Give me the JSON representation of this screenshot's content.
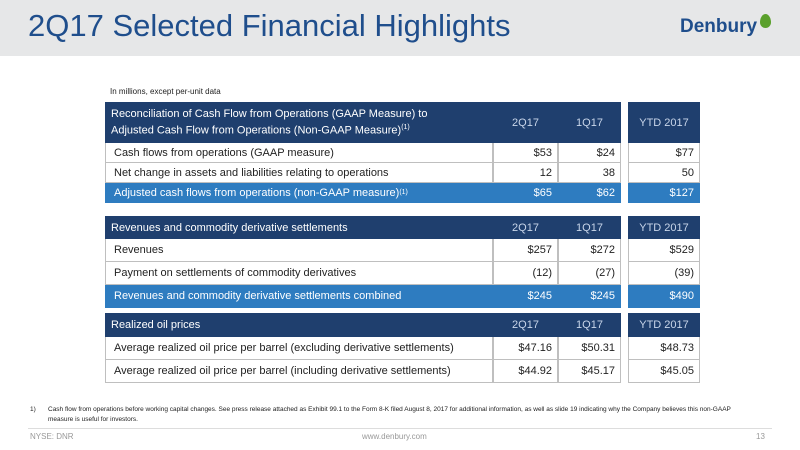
{
  "header": {
    "title": "2Q17 Selected Financial Highlights",
    "logo": "Denbury"
  },
  "note": "In millions, except per-unit data",
  "tables": [
    {
      "header": {
        "lines": [
          "Reconciliation of Cash Flow from Operations (GAAP Measure) to",
          "Adjusted Cash Flow from Operations (Non-GAAP Measure)"
        ],
        "sup": "(1)",
        "columns": [
          "2Q17",
          "1Q17",
          "YTD 2017"
        ]
      },
      "rows": [
        {
          "label": "Cash flows from operations (GAAP measure)",
          "cells": [
            "$53",
            "$24",
            "$77"
          ]
        },
        {
          "label": "Net change in assets and liabilities relating to operations",
          "cells": [
            "12",
            "38",
            "50"
          ]
        },
        {
          "label": "Adjusted cash flows from operations (non-GAAP measure)",
          "sup": "(1)",
          "cells": [
            "$65",
            "$62",
            "$127"
          ]
        }
      ]
    },
    {
      "header": {
        "lines": [
          "Revenues and commodity derivative settlements"
        ],
        "columns": [
          "2Q17",
          "1Q17",
          "YTD 2017"
        ]
      },
      "rows": [
        {
          "label": "Revenues",
          "cells": [
            "$257",
            "$272",
            "$529"
          ]
        },
        {
          "label": "Payment on settlements of commodity derivatives",
          "cells": [
            "(12)",
            "(27)",
            "(39)"
          ]
        },
        {
          "label": "Revenues and commodity derivative settlements combined",
          "cells": [
            "$245",
            "$245",
            "$490"
          ]
        }
      ]
    },
    {
      "header": {
        "lines": [
          "Realized oil prices"
        ],
        "columns": [
          "2Q17",
          "1Q17",
          "YTD 2017"
        ]
      },
      "rows": [
        {
          "label": "Average realized oil price per barrel (excluding derivative settlements)",
          "cells": [
            "$47.16",
            "$50.31",
            "$48.73"
          ]
        },
        {
          "label": "Average realized oil price per barrel (including derivative settlements)",
          "cells": [
            "$44.92",
            "$45.17",
            "$45.05"
          ]
        }
      ]
    }
  ],
  "footnote": {
    "marker": "1)",
    "text": "Cash flow from operations before working capital changes.  See press release attached as Exhibit 99.1 to the Form 8-K filed August 8, 2017 for additional information, as well as slide 19 indicating why the Company believes this non-GAAP measure is useful for investors."
  },
  "footer": {
    "ticker": "NYSE: DNR",
    "url": "www.denbury.com",
    "page": "13"
  }
}
